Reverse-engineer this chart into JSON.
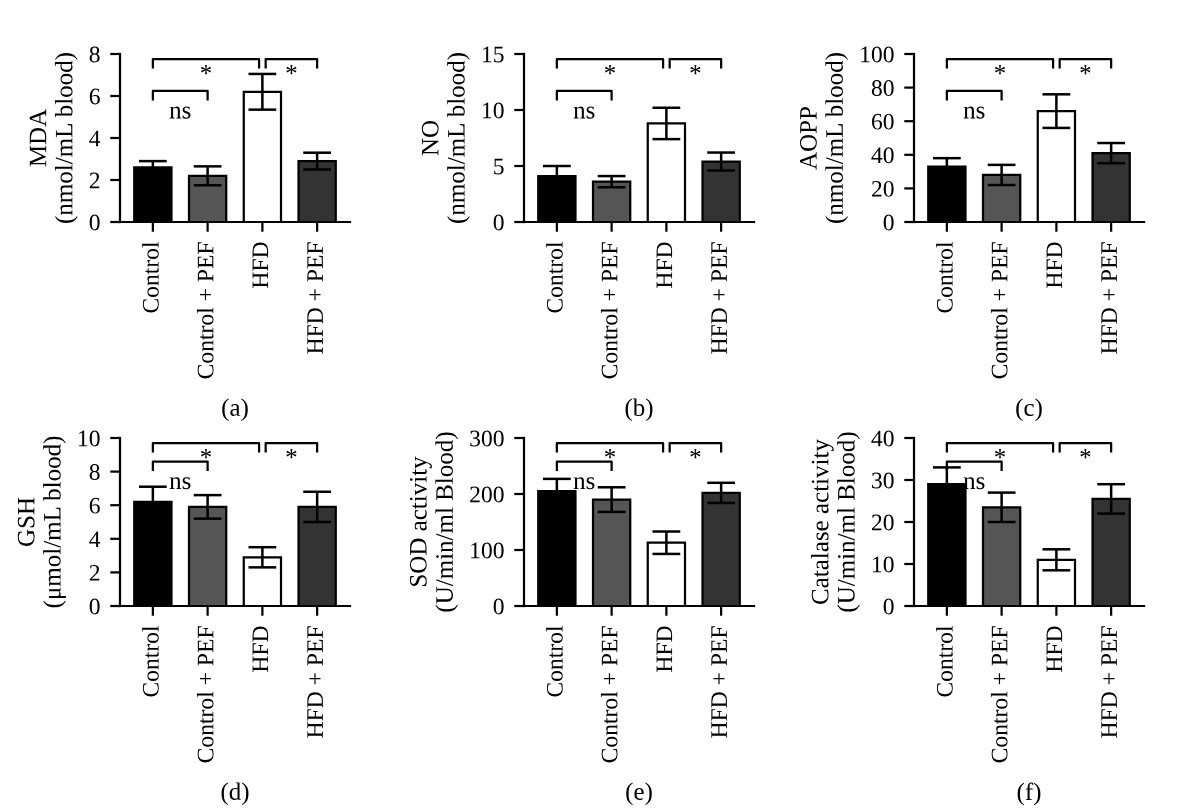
{
  "chart_data": [
    {
      "type": "bar",
      "ylabel": "MDA\n(nmol/mL blood)",
      "categories": [
        "Control",
        "Control + PEF",
        "HFD",
        "HFD + PEF"
      ],
      "values": [
        2.6,
        2.2,
        6.2,
        2.9
      ],
      "errors": [
        0.3,
        0.45,
        0.85,
        0.4
      ],
      "colors": [
        "#000000",
        "#555555",
        "#ffffff",
        "#333333"
      ],
      "ylim": [
        0,
        8
      ],
      "yticks": [
        0,
        2,
        4,
        6,
        8
      ],
      "grid": false,
      "legend": false,
      "annotations": [
        "ns",
        "*",
        "*",
        "(a)"
      ]
    },
    {
      "type": "bar",
      "ylabel": "NO\n(nmol/mL blood)",
      "categories": [
        "Control",
        "Control + PEF",
        "HFD",
        "HFD + PEF"
      ],
      "values": [
        4.1,
        3.6,
        8.8,
        5.4
      ],
      "errors": [
        0.9,
        0.5,
        1.4,
        0.8
      ],
      "colors": [
        "#000000",
        "#555555",
        "#ffffff",
        "#333333"
      ],
      "ylim": [
        0,
        15
      ],
      "yticks": [
        0,
        5,
        10,
        15
      ],
      "grid": false,
      "legend": false,
      "annotations": [
        "ns",
        "*",
        "*",
        "(b)"
      ]
    },
    {
      "type": "bar",
      "ylabel": "AOPP\n(nmol/mL blood)",
      "categories": [
        "Control",
        "Control + PEF",
        "HFD",
        "HFD + PEF"
      ],
      "values": [
        33,
        28,
        66,
        41
      ],
      "errors": [
        5,
        6,
        10,
        6
      ],
      "colors": [
        "#000000",
        "#555555",
        "#ffffff",
        "#333333"
      ],
      "ylim": [
        0,
        100
      ],
      "yticks": [
        0,
        20,
        40,
        60,
        80,
        100
      ],
      "grid": false,
      "legend": false,
      "annotations": [
        "ns",
        "*",
        "*",
        "(c)"
      ]
    },
    {
      "type": "bar",
      "ylabel": "GSH\n(μmol/mL blood)",
      "categories": [
        "Control",
        "Control + PEF",
        "HFD",
        "HFD + PEF"
      ],
      "values": [
        6.2,
        5.9,
        2.9,
        5.9
      ],
      "errors": [
        0.9,
        0.7,
        0.6,
        0.9
      ],
      "colors": [
        "#000000",
        "#555555",
        "#ffffff",
        "#333333"
      ],
      "ylim": [
        0,
        10
      ],
      "yticks": [
        0,
        2,
        4,
        6,
        8,
        10
      ],
      "grid": false,
      "legend": false,
      "annotations": [
        "ns",
        "*",
        "*",
        "(d)"
      ]
    },
    {
      "type": "bar",
      "ylabel": "SOD activity\n(U/min/ml Blood)",
      "categories": [
        "Control",
        "Control + PEF",
        "HFD",
        "HFD + PEF"
      ],
      "values": [
        205,
        190,
        113,
        202
      ],
      "errors": [
        22,
        22,
        20,
        18
      ],
      "colors": [
        "#000000",
        "#555555",
        "#ffffff",
        "#333333"
      ],
      "ylim": [
        0,
        300
      ],
      "yticks": [
        0,
        100,
        200,
        300
      ],
      "grid": false,
      "legend": false,
      "annotations": [
        "ns",
        "*",
        "*",
        "(e)"
      ]
    },
    {
      "type": "bar",
      "ylabel": "Catalase activity\n(U/min/ml Blood)",
      "categories": [
        "Control",
        "Control + PEF",
        "HFD",
        "HFD + PEF"
      ],
      "values": [
        29,
        23.5,
        11,
        25.5
      ],
      "errors": [
        4,
        3.5,
        2.5,
        3.5
      ],
      "colors": [
        "#000000",
        "#555555",
        "#ffffff",
        "#333333"
      ],
      "ylim": [
        0,
        40
      ],
      "yticks": [
        0,
        10,
        20,
        30,
        40
      ],
      "grid": false,
      "legend": false,
      "annotations": [
        "ns",
        "*",
        "*",
        "(f)"
      ]
    }
  ]
}
